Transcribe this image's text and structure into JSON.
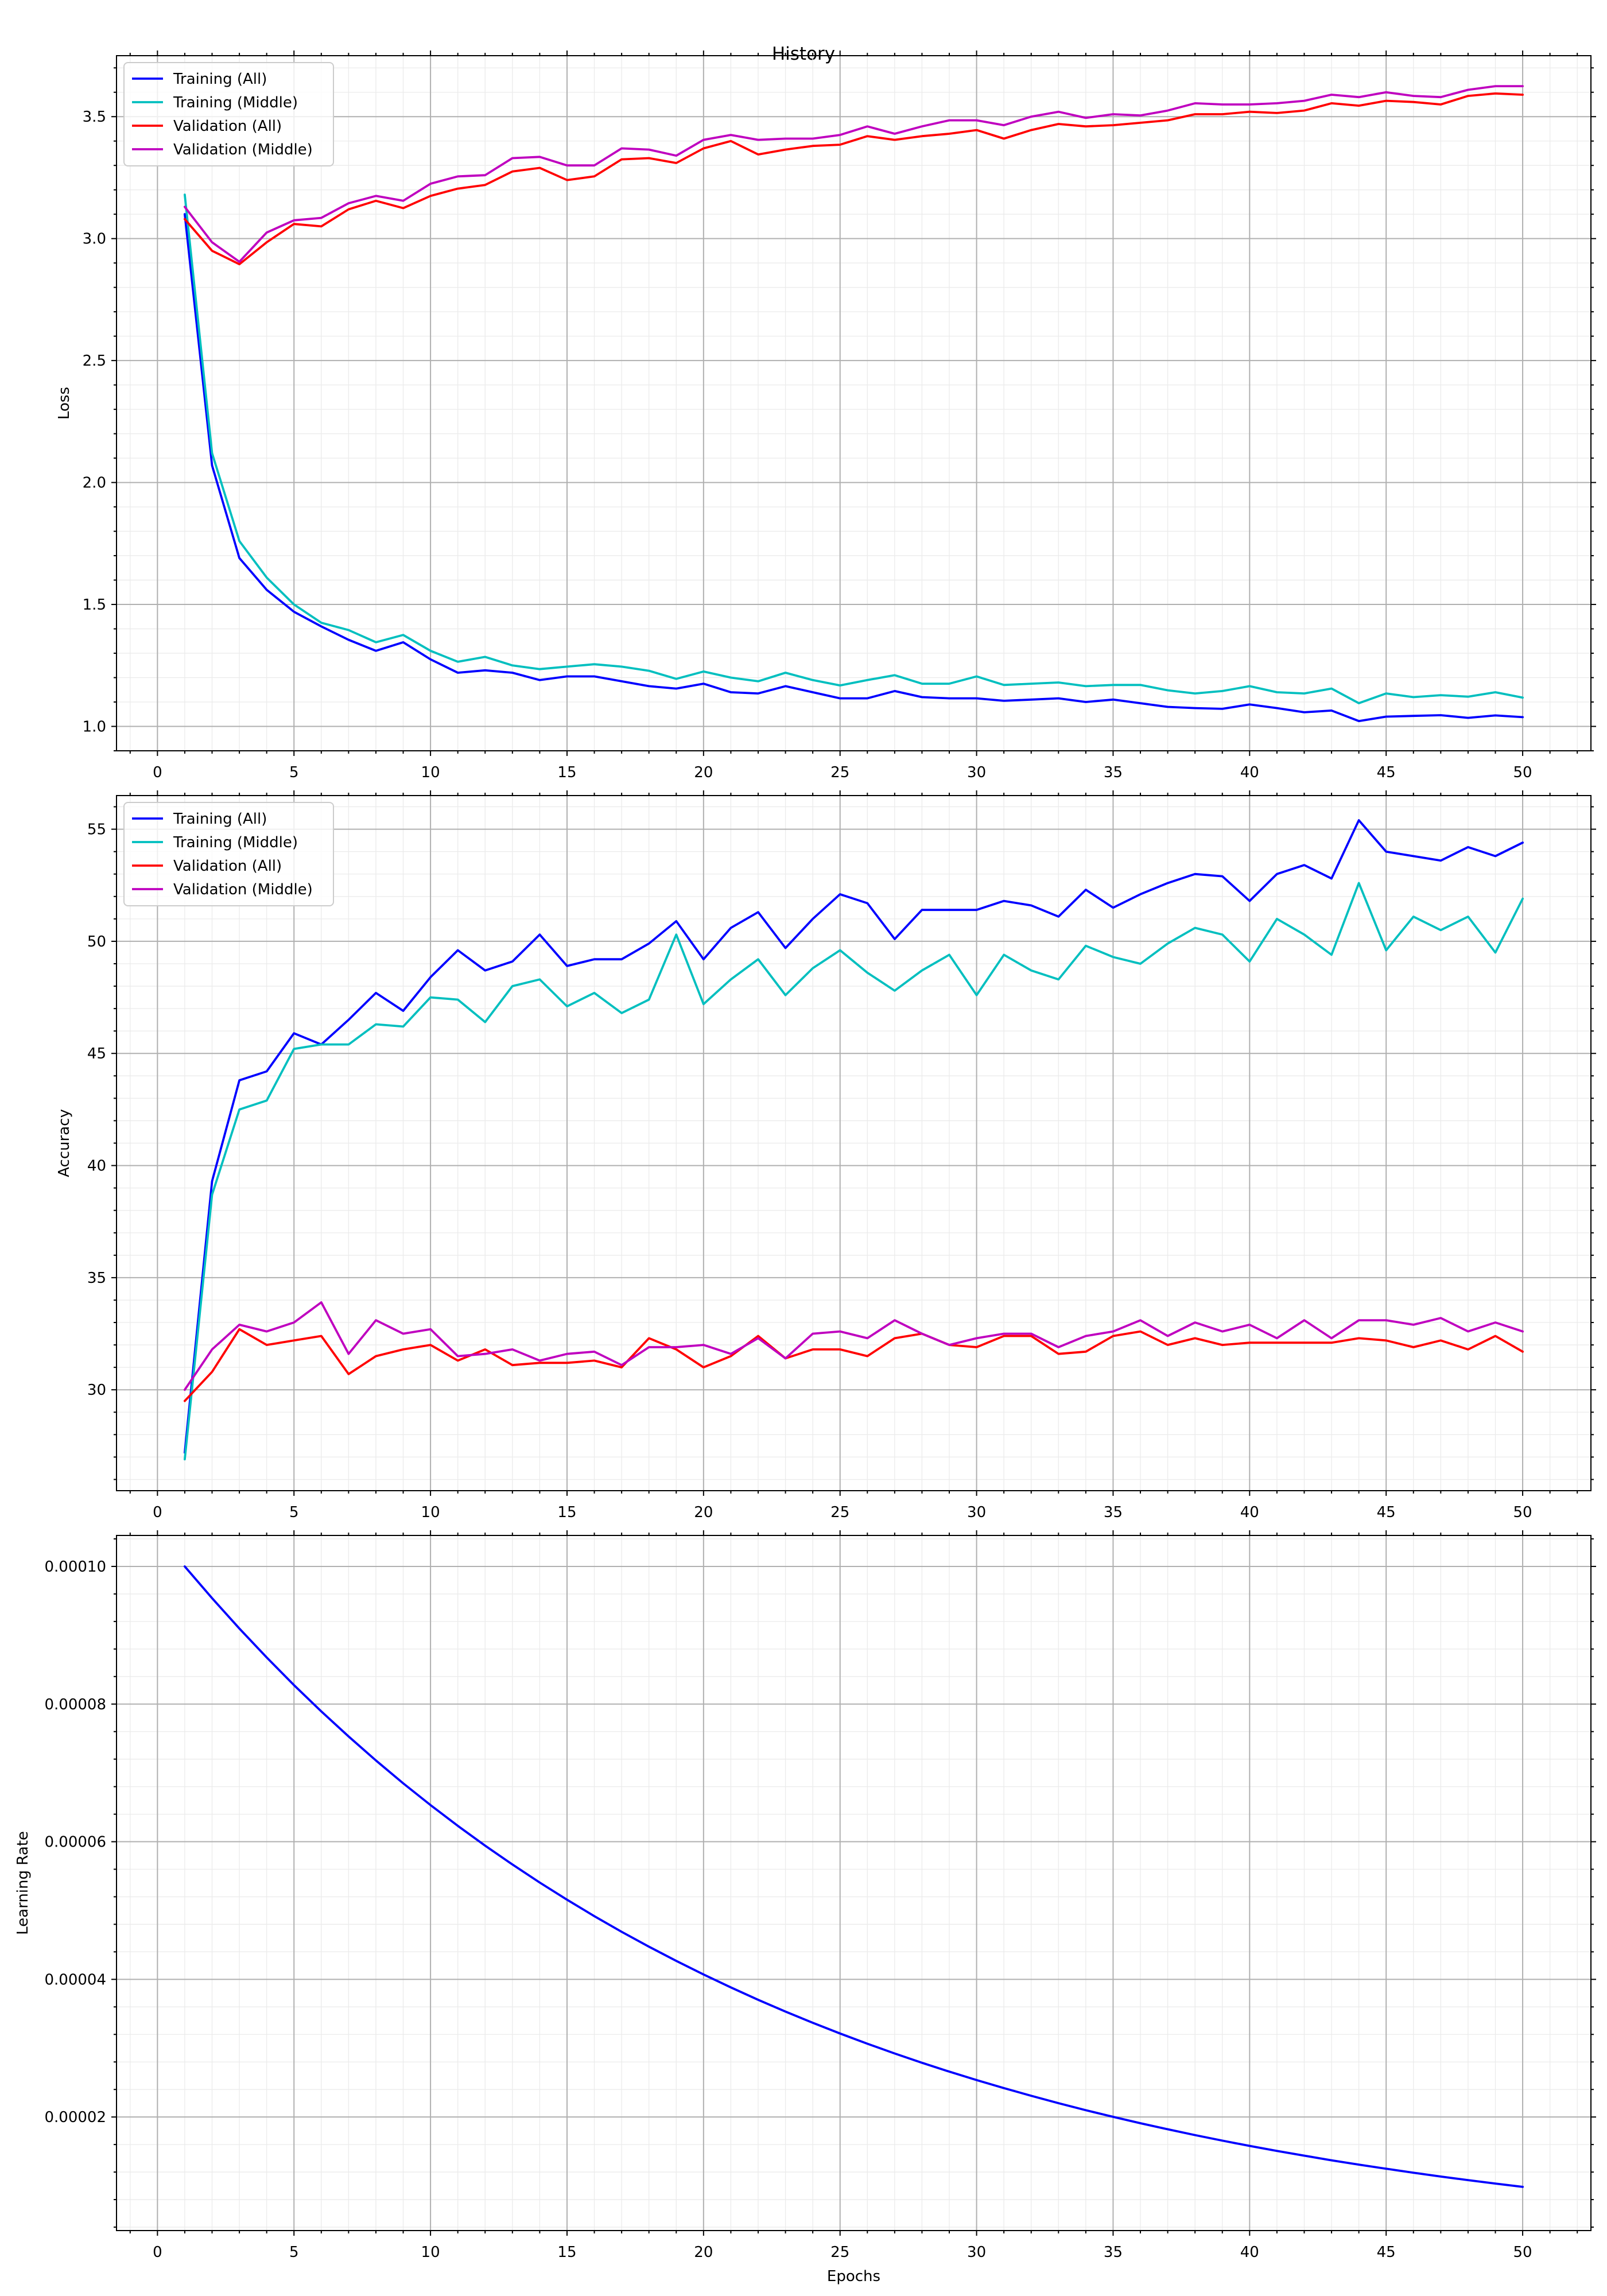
{
  "figure_title": "History",
  "chart_data": [
    {
      "type": "line",
      "title": "",
      "xlabel": "",
      "ylabel": "Loss",
      "xlim": [
        -1.5,
        52.5
      ],
      "ylim": [
        0.9,
        3.75
      ],
      "grid": true,
      "legend_position": "top-left",
      "x_ticks": [
        0,
        5,
        10,
        15,
        20,
        25,
        30,
        35,
        40,
        45,
        50
      ],
      "y_ticks": [
        1.0,
        1.5,
        2.0,
        2.5,
        3.0,
        3.5
      ],
      "y_tick_labels": [
        "1.0",
        "1.5",
        "2.0",
        "2.5",
        "3.0",
        "3.5"
      ],
      "x": [
        1,
        2,
        3,
        4,
        5,
        6,
        7,
        8,
        9,
        10,
        11,
        12,
        13,
        14,
        15,
        16,
        17,
        18,
        19,
        20,
        21,
        22,
        23,
        24,
        25,
        26,
        27,
        28,
        29,
        30,
        31,
        32,
        33,
        34,
        35,
        36,
        37,
        38,
        39,
        40,
        41,
        42,
        43,
        44,
        45,
        46,
        47,
        48,
        49,
        50
      ],
      "series": [
        {
          "name": "Training (All)",
          "color": "#0000ff",
          "values": [
            3.1,
            2.07,
            1.69,
            1.56,
            1.47,
            1.41,
            1.355,
            1.31,
            1.345,
            1.275,
            1.22,
            1.23,
            1.22,
            1.19,
            1.205,
            1.205,
            1.185,
            1.165,
            1.155,
            1.175,
            1.14,
            1.135,
            1.165,
            1.14,
            1.115,
            1.115,
            1.145,
            1.12,
            1.115,
            1.115,
            1.105,
            1.11,
            1.115,
            1.1,
            1.11,
            1.095,
            1.08,
            1.075,
            1.072,
            1.09,
            1.075,
            1.058,
            1.065,
            1.022,
            1.04,
            1.043,
            1.046,
            1.035,
            1.045,
            1.038
          ]
        },
        {
          "name": "Training (Middle)",
          "color": "#00bfbf",
          "values": [
            3.18,
            2.12,
            1.76,
            1.61,
            1.5,
            1.425,
            1.395,
            1.345,
            1.375,
            1.31,
            1.265,
            1.285,
            1.25,
            1.235,
            1.245,
            1.255,
            1.245,
            1.228,
            1.195,
            1.225,
            1.2,
            1.185,
            1.22,
            1.19,
            1.168,
            1.19,
            1.21,
            1.175,
            1.175,
            1.205,
            1.17,
            1.175,
            1.18,
            1.165,
            1.17,
            1.17,
            1.148,
            1.135,
            1.145,
            1.165,
            1.14,
            1.135,
            1.155,
            1.095,
            1.135,
            1.12,
            1.128,
            1.122,
            1.14,
            1.118
          ]
        },
        {
          "name": "Validation (All)",
          "color": "#ff0000",
          "values": [
            3.08,
            2.95,
            2.895,
            2.985,
            3.06,
            3.05,
            3.12,
            3.155,
            3.125,
            3.175,
            3.205,
            3.22,
            3.275,
            3.29,
            3.24,
            3.255,
            3.325,
            3.33,
            3.31,
            3.37,
            3.4,
            3.345,
            3.365,
            3.38,
            3.385,
            3.42,
            3.405,
            3.42,
            3.43,
            3.445,
            3.41,
            3.445,
            3.47,
            3.46,
            3.465,
            3.475,
            3.485,
            3.51,
            3.51,
            3.52,
            3.515,
            3.525,
            3.555,
            3.545,
            3.565,
            3.56,
            3.55,
            3.585,
            3.595,
            3.59
          ]
        },
        {
          "name": "Validation (Middle)",
          "color": "#bf00bf",
          "values": [
            3.13,
            2.985,
            2.905,
            3.025,
            3.075,
            3.085,
            3.145,
            3.175,
            3.155,
            3.225,
            3.255,
            3.26,
            3.33,
            3.335,
            3.3,
            3.3,
            3.37,
            3.365,
            3.34,
            3.405,
            3.425,
            3.405,
            3.41,
            3.41,
            3.425,
            3.46,
            3.43,
            3.46,
            3.485,
            3.485,
            3.465,
            3.5,
            3.52,
            3.495,
            3.51,
            3.505,
            3.525,
            3.555,
            3.55,
            3.55,
            3.555,
            3.565,
            3.59,
            3.58,
            3.6,
            3.585,
            3.58,
            3.61,
            3.625,
            3.625
          ]
        }
      ]
    },
    {
      "type": "line",
      "title": "",
      "xlabel": "",
      "ylabel": "Accuracy",
      "xlim": [
        -1.5,
        52.5
      ],
      "ylim": [
        25.5,
        56.5
      ],
      "grid": true,
      "legend_position": "top-left",
      "x_ticks": [
        0,
        5,
        10,
        15,
        20,
        25,
        30,
        35,
        40,
        45,
        50
      ],
      "y_ticks": [
        30,
        35,
        40,
        45,
        50,
        55
      ],
      "y_tick_labels": [
        "30",
        "35",
        "40",
        "45",
        "50",
        "55"
      ],
      "x": [
        1,
        2,
        3,
        4,
        5,
        6,
        7,
        8,
        9,
        10,
        11,
        12,
        13,
        14,
        15,
        16,
        17,
        18,
        19,
        20,
        21,
        22,
        23,
        24,
        25,
        26,
        27,
        28,
        29,
        30,
        31,
        32,
        33,
        34,
        35,
        36,
        37,
        38,
        39,
        40,
        41,
        42,
        43,
        44,
        45,
        46,
        47,
        48,
        49,
        50
      ],
      "series": [
        {
          "name": "Training (All)",
          "color": "#0000ff",
          "values": [
            27.2,
            39.3,
            43.8,
            44.2,
            45.9,
            45.4,
            46.5,
            47.7,
            46.9,
            48.4,
            49.6,
            48.7,
            49.1,
            50.3,
            48.9,
            49.2,
            49.2,
            49.9,
            50.9,
            49.2,
            50.6,
            51.3,
            49.7,
            51.0,
            52.1,
            51.7,
            50.1,
            51.4,
            51.4,
            51.4,
            51.8,
            51.6,
            51.1,
            52.3,
            51.5,
            52.1,
            52.6,
            53.0,
            52.9,
            51.8,
            53.0,
            53.4,
            52.8,
            55.4,
            54.0,
            53.8,
            53.6,
            54.2,
            53.8,
            54.4
          ]
        },
        {
          "name": "Training (Middle)",
          "color": "#00bfbf",
          "values": [
            26.9,
            38.7,
            42.5,
            42.9,
            45.2,
            45.4,
            45.4,
            46.3,
            46.2,
            47.5,
            47.4,
            46.4,
            48.0,
            48.3,
            47.1,
            47.7,
            46.8,
            47.4,
            50.3,
            47.2,
            48.3,
            49.2,
            47.6,
            48.8,
            49.6,
            48.6,
            47.8,
            48.7,
            49.4,
            47.6,
            49.4,
            48.7,
            48.3,
            49.8,
            49.3,
            49.0,
            49.9,
            50.6,
            50.3,
            49.1,
            51.0,
            50.3,
            49.4,
            52.6,
            49.6,
            51.1,
            50.5,
            51.1,
            49.5,
            51.9
          ]
        },
        {
          "name": "Validation (All)",
          "color": "#ff0000",
          "values": [
            29.5,
            30.8,
            32.7,
            32.0,
            32.2,
            32.4,
            30.7,
            31.5,
            31.8,
            32.0,
            31.3,
            31.8,
            31.1,
            31.2,
            31.2,
            31.3,
            31.0,
            32.3,
            31.8,
            31.0,
            31.5,
            32.4,
            31.4,
            31.8,
            31.8,
            31.5,
            32.3,
            32.5,
            32.0,
            31.9,
            32.4,
            32.4,
            31.6,
            31.7,
            32.4,
            32.6,
            32.0,
            32.3,
            32.0,
            32.1,
            32.1,
            32.1,
            32.1,
            32.3,
            32.2,
            31.9,
            32.2,
            31.8,
            32.4,
            31.7
          ]
        },
        {
          "name": "Validation (Middle)",
          "color": "#bf00bf",
          "values": [
            30.0,
            31.8,
            32.9,
            32.6,
            33.0,
            33.9,
            31.6,
            33.1,
            32.5,
            32.7,
            31.5,
            31.6,
            31.8,
            31.3,
            31.6,
            31.7,
            31.1,
            31.9,
            31.9,
            32.0,
            31.6,
            32.3,
            31.4,
            32.5,
            32.6,
            32.3,
            33.1,
            32.5,
            32.0,
            32.3,
            32.5,
            32.5,
            31.9,
            32.4,
            32.6,
            33.1,
            32.4,
            33.0,
            32.6,
            32.9,
            32.3,
            33.1,
            32.3,
            33.1,
            33.1,
            32.9,
            33.2,
            32.6,
            33.0,
            32.6
          ]
        }
      ]
    },
    {
      "type": "line",
      "title": "",
      "xlabel": "Epochs",
      "ylabel": "Learning Rate",
      "xlim": [
        -1.5,
        52.5
      ],
      "ylim": [
        3.5e-06,
        0.0001045
      ],
      "grid": true,
      "legend_position": "none",
      "x_ticks": [
        0,
        5,
        10,
        15,
        20,
        25,
        30,
        35,
        40,
        45,
        50
      ],
      "y_ticks": [
        2e-05,
        4e-05,
        6e-05,
        8e-05,
        0.0001
      ],
      "y_tick_labels": [
        "0.00002",
        "0.00004",
        "0.00006",
        "0.00008",
        "0.00010"
      ],
      "x": [
        1,
        2,
        3,
        4,
        5,
        6,
        7,
        8,
        9,
        10,
        11,
        12,
        13,
        14,
        15,
        16,
        17,
        18,
        19,
        20,
        21,
        22,
        23,
        24,
        25,
        26,
        27,
        28,
        29,
        30,
        31,
        32,
        33,
        34,
        35,
        36,
        37,
        38,
        39,
        40,
        41,
        42,
        43,
        44,
        45,
        46,
        47,
        48,
        49,
        50
      ],
      "series": [
        {
          "name": "",
          "color": "#0000ff",
          "values": [
            0.0001,
            9.538e-05,
            9.097e-05,
            8.677e-05,
            8.276e-05,
            7.894e-05,
            7.529e-05,
            7.181e-05,
            6.849e-05,
            6.533e-05,
            6.231e-05,
            5.943e-05,
            5.669e-05,
            5.407e-05,
            5.157e-05,
            4.919e-05,
            4.691e-05,
            4.475e-05,
            4.268e-05,
            4.071e-05,
            3.883e-05,
            3.703e-05,
            3.532e-05,
            3.369e-05,
            3.213e-05,
            3.065e-05,
            2.923e-05,
            2.788e-05,
            2.659e-05,
            2.537e-05,
            2.42e-05,
            2.308e-05,
            2.201e-05,
            2.099e-05,
            2.002e-05,
            1.91e-05,
            1.822e-05,
            1.737e-05,
            1.657e-05,
            1.58e-05,
            1.507e-05,
            1.438e-05,
            1.371e-05,
            1.308e-05,
            1.248e-05,
            1.19e-05,
            1.135e-05,
            1.083e-05,
            1.033e-05,
            9.85e-06
          ]
        }
      ]
    }
  ]
}
